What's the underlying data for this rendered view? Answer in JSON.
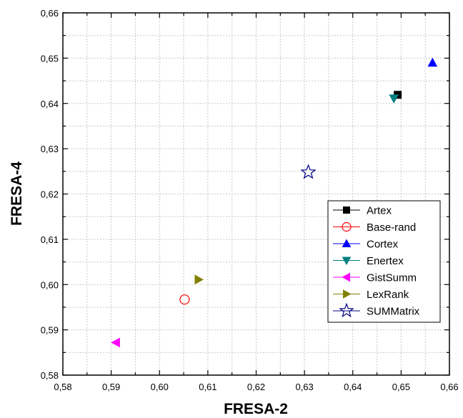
{
  "chart_data": {
    "type": "scatter",
    "xlabel": "FRESA-2",
    "ylabel": "FRESA-4",
    "xlim": [
      0.58,
      0.66
    ],
    "ylim": [
      0.58,
      0.66
    ],
    "x_ticks": [
      "0,58",
      "0,59",
      "0,60",
      "0,61",
      "0,62",
      "0,63",
      "0,64",
      "0,65",
      "0,66"
    ],
    "y_ticks": [
      "0,58",
      "0,59",
      "0,60",
      "0,61",
      "0,62",
      "0,63",
      "0,64",
      "0,65",
      "0,66"
    ],
    "grid": true,
    "legend_position": "bottom-right",
    "series": [
      {
        "name": "Artex",
        "marker": "square",
        "color": "#000000",
        "filled": true,
        "x": 0.6493,
        "y": 0.6419
      },
      {
        "name": "Base-rand",
        "marker": "circle",
        "color": "#ff0000",
        "filled": false,
        "x": 0.6052,
        "y": 0.5967
      },
      {
        "name": "Cortex",
        "marker": "triangle-up",
        "color": "#0000ff",
        "filled": true,
        "x": 0.6565,
        "y": 0.649
      },
      {
        "name": "Enertex",
        "marker": "triangle-down",
        "color": "#008080",
        "filled": true,
        "x": 0.6485,
        "y": 0.6411
      },
      {
        "name": "GistSumm",
        "marker": "triangle-left",
        "color": "#ff00ff",
        "filled": true,
        "x": 0.591,
        "y": 0.5872
      },
      {
        "name": "LexRank",
        "marker": "triangle-right",
        "color": "#808000",
        "filled": true,
        "x": 0.6081,
        "y": 0.6011
      },
      {
        "name": "SUMMatrix",
        "marker": "star",
        "color": "#000080",
        "filled": false,
        "x": 0.6308,
        "y": 0.6248
      }
    ]
  }
}
